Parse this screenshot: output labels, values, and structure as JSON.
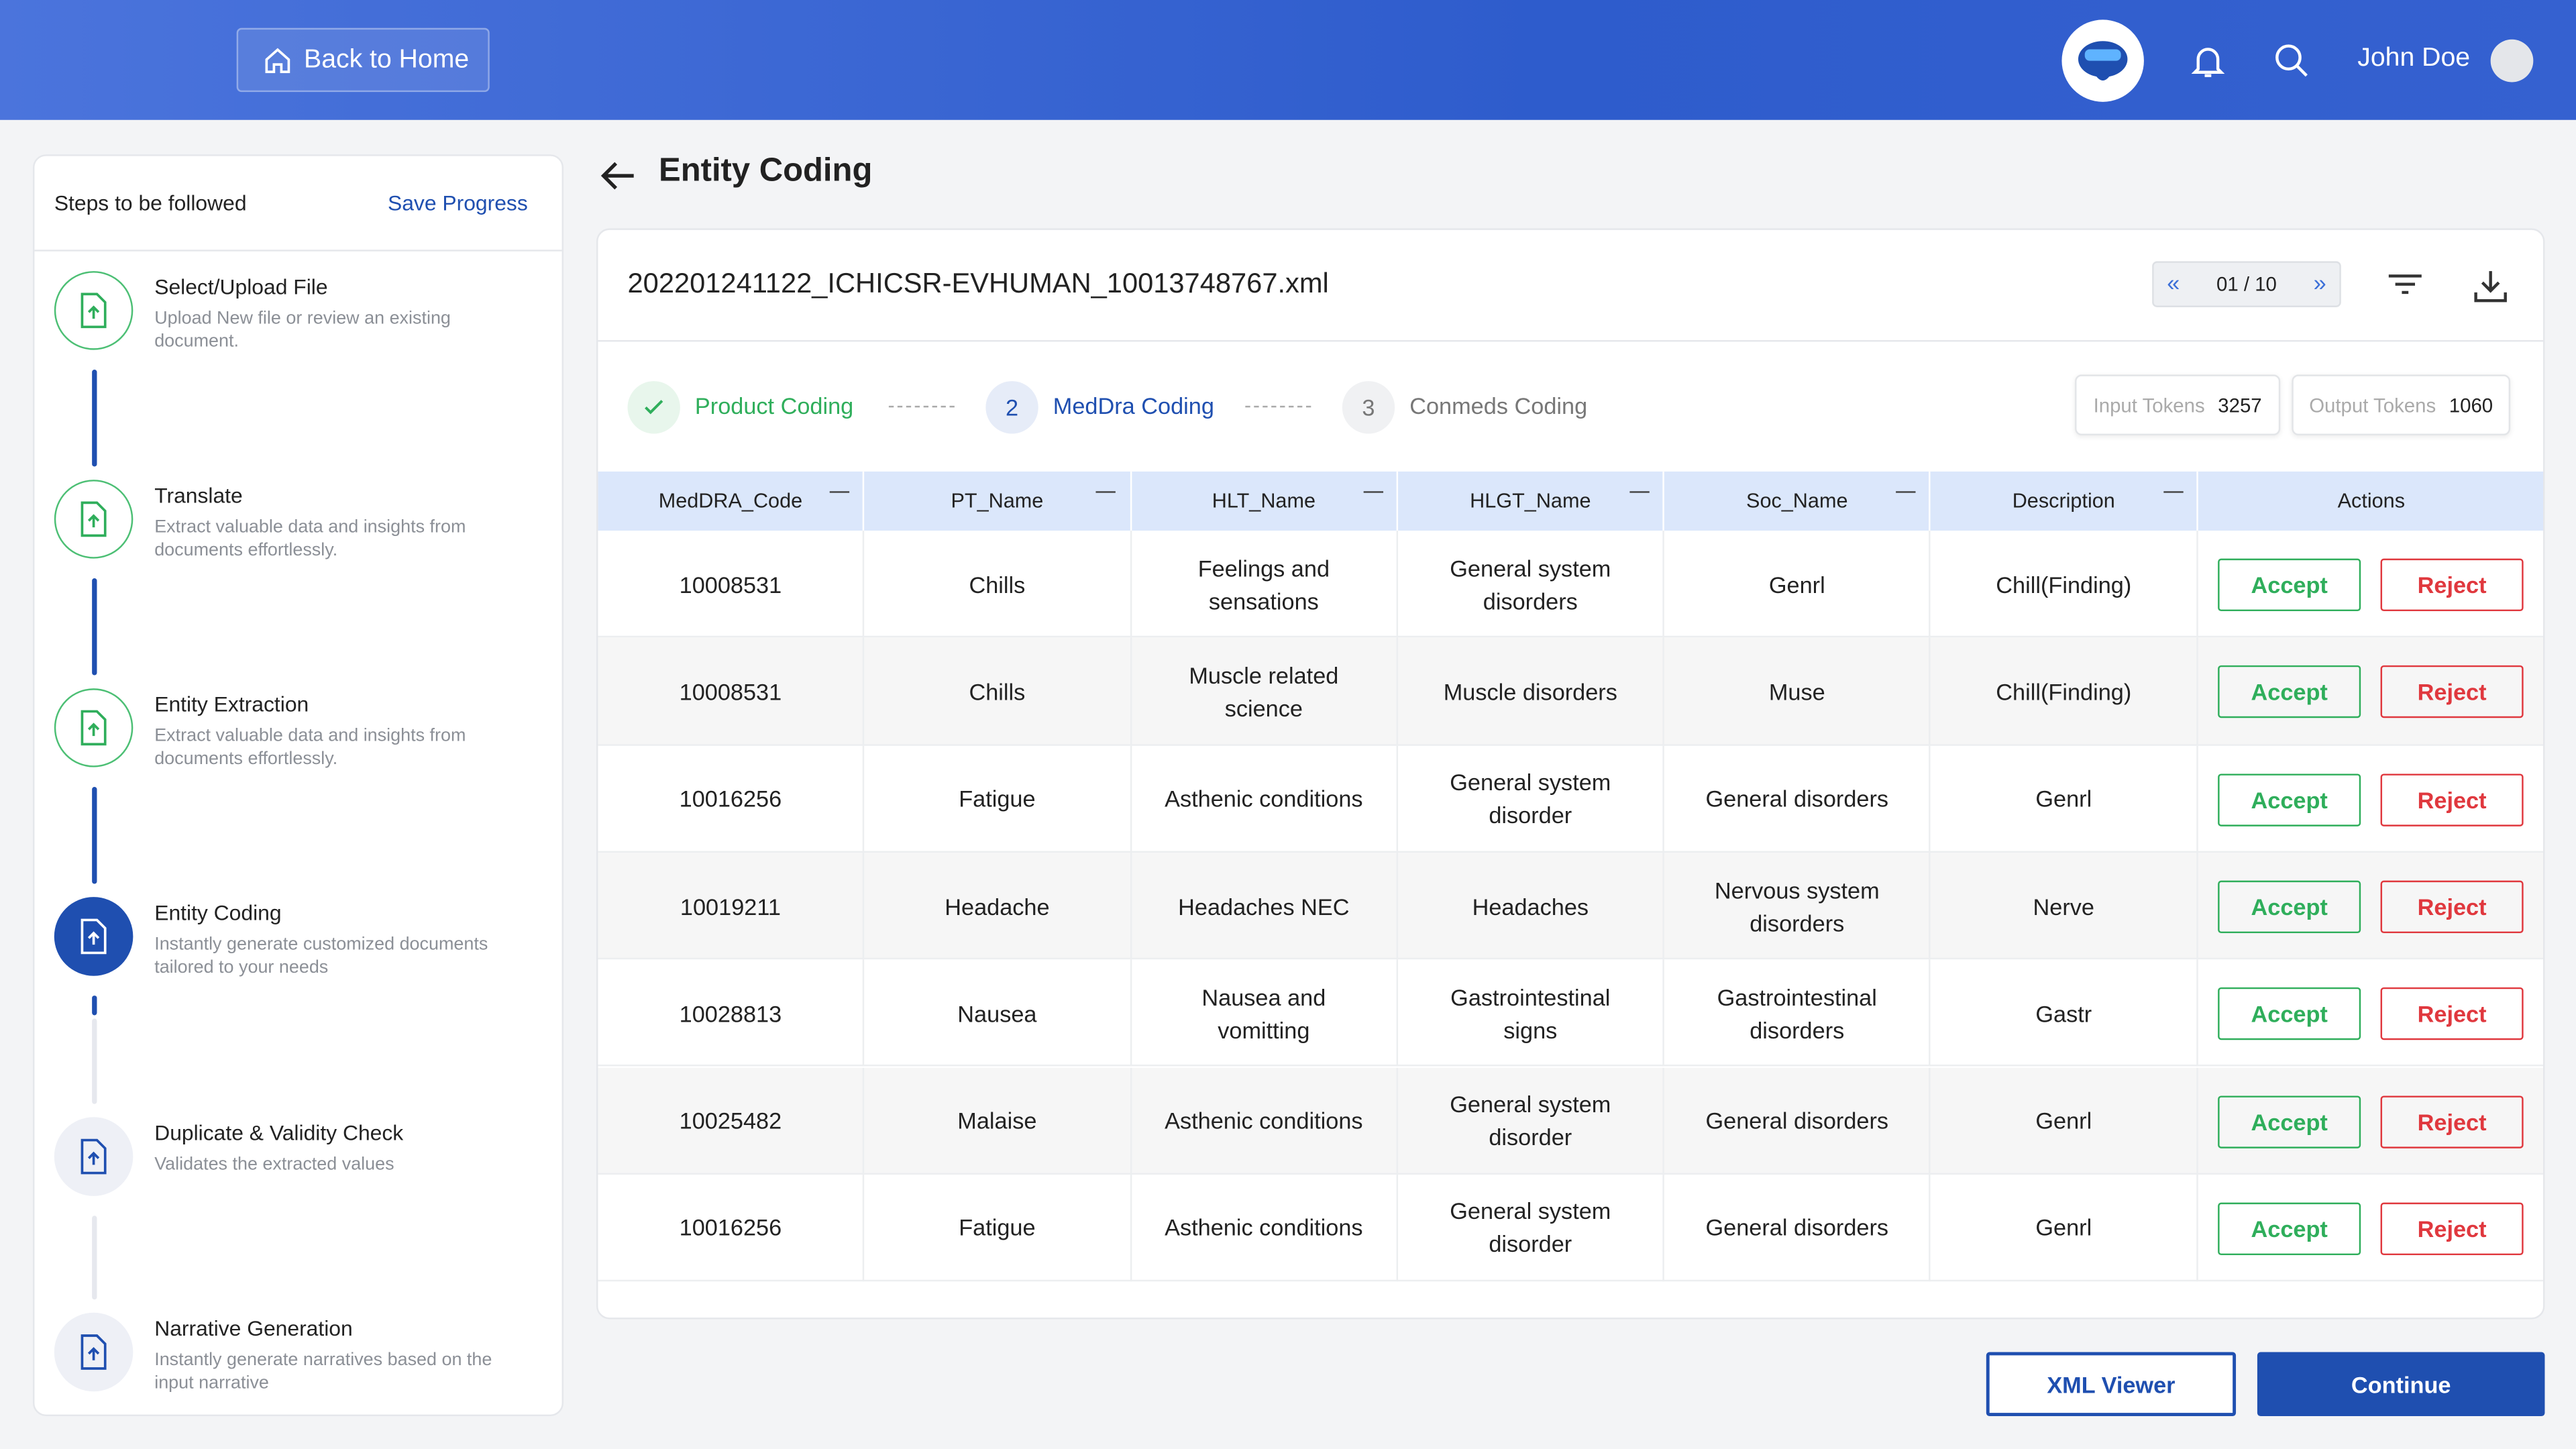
{
  "header": {
    "back_button": "Back to Home",
    "user_name": "John Doe"
  },
  "sidebar": {
    "title": "Steps to be followed",
    "action": "Save Progress",
    "steps": [
      {
        "title": "Select/Upload File",
        "description": "Upload New file or review an existing document."
      },
      {
        "title": "Translate",
        "description": "Extract valuable data and insights from documents effortlessly."
      },
      {
        "title": "Entity Extraction",
        "description": "Extract valuable data and insights from documents effortlessly."
      },
      {
        "title": "Entity Coding",
        "description": "Instantly generate customized documents tailored to your needs"
      },
      {
        "title": "Duplicate & Validity Check",
        "description": "Validates the extracted values"
      },
      {
        "title": "Narrative Generation",
        "description": "Instantly generate narratives based on the input narrative"
      }
    ]
  },
  "main": {
    "title": "Entity Coding",
    "file_name": "202201241122_ICHICSR-EVHUMAN_10013748767.xml",
    "pagination": "01 / 10",
    "tabs": [
      {
        "label": "Product Coding"
      },
      {
        "number": "2",
        "label": "MedDra Coding"
      },
      {
        "number": "3",
        "label": "Conmeds Coding"
      }
    ],
    "tokens": [
      {
        "label": "Input Tokens",
        "value": "3257"
      },
      {
        "label": "Output Tokens",
        "value": "1060"
      }
    ],
    "table": {
      "headers": [
        "MedDRA_Code",
        "PT_Name",
        "HLT_Name",
        "HLGT_Name",
        "Soc_Name",
        "Description",
        "Actions"
      ],
      "rows": [
        [
          "10008531",
          "Chills",
          "Feelings and sensations",
          "General system disorders",
          "Genrl",
          "Chill(Finding)"
        ],
        [
          "10008531",
          "Chills",
          "Muscle related science",
          "Muscle disorders",
          "Muse",
          "Chill(Finding)"
        ],
        [
          "10016256",
          "Fatigue",
          "Asthenic conditions",
          "General system disorder",
          "General disorders",
          "Genrl"
        ],
        [
          "10019211",
          "Headache",
          "Headaches NEC",
          "Headaches",
          "Nervous system disorders",
          "Nerve"
        ],
        [
          "10028813",
          "Nausea",
          "Nausea and vomitting",
          "Gastrointestinal signs",
          "Gastrointestinal disorders",
          "Gastr"
        ],
        [
          "10025482",
          "Malaise",
          "Asthenic conditions",
          "General system disorder",
          "General disorders",
          "Genrl"
        ],
        [
          "10016256",
          "Fatigue",
          "Asthenic conditions",
          "General system disorder",
          "General disorders",
          "Genrl"
        ]
      ],
      "accept": "Accept",
      "reject": "Reject"
    },
    "buttons": {
      "secondary": "XML Viewer",
      "primary": "Continue"
    }
  }
}
